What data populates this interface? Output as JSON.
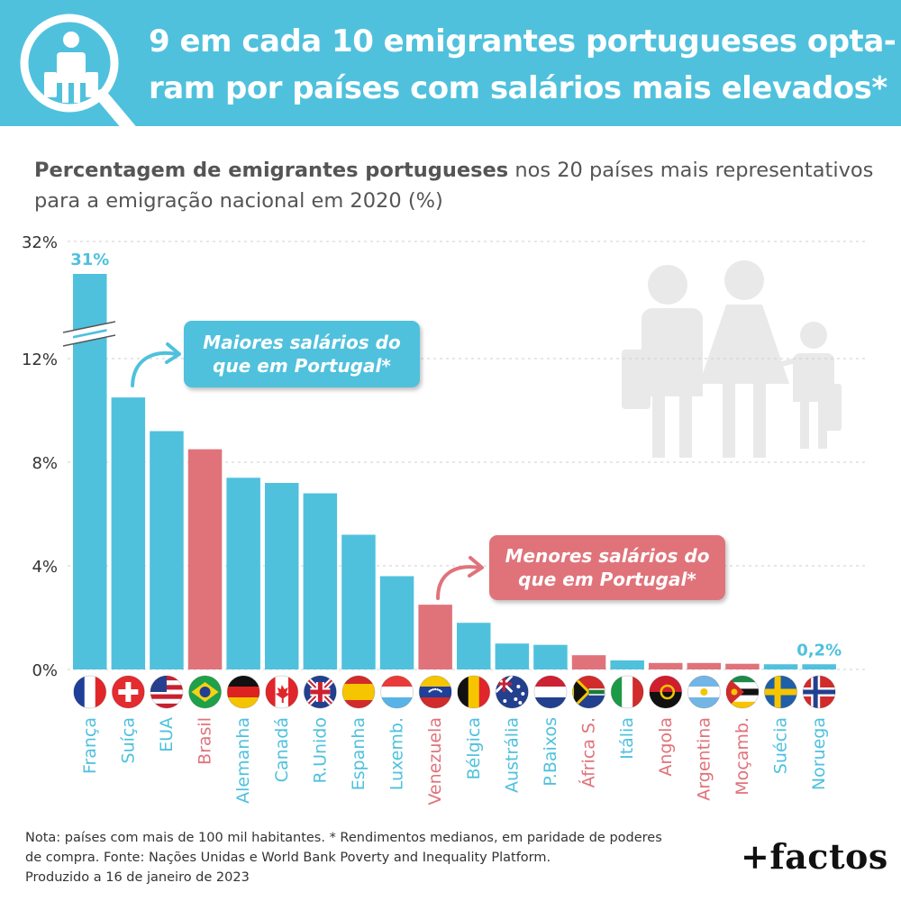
{
  "header": {
    "title_line1": "9 em cada 10 emigrantes portugueses opta-",
    "title_line2": "ram por países com salários mais elevados*",
    "icon": "magnifier-person-icon"
  },
  "subtitle": {
    "bold": "Percentagem de emigrantes portugueses",
    "rest_line1": " nos 20 países mais representativos",
    "line2": "para a emigração nacional em 2020 (%)"
  },
  "colors": {
    "higher": "#4fc1dd",
    "lower": "#e0737a",
    "header": "#4fc1dd",
    "axis_text": "#333333"
  },
  "callouts": {
    "higher_line1": "Maiores salários do",
    "higher_line2": "que em Portugal*",
    "lower_line1": "Menores salários do",
    "lower_line2": "que em Portugal*"
  },
  "chart_data": {
    "type": "bar",
    "categories": [
      "França",
      "Suíça",
      "EUA",
      "Brasil",
      "Alemanha",
      "Canadá",
      "R.Unido",
      "Espanha",
      "Luxemb.",
      "Venezuela",
      "Bélgica",
      "Austrália",
      "P.Baixos",
      "África S.",
      "Itália",
      "Angola",
      "Argentina",
      "Moçamb.",
      "Suécia",
      "Noruega"
    ],
    "values": [
      31,
      10.5,
      9.2,
      8.5,
      7.4,
      7.2,
      6.8,
      5.2,
      3.6,
      2.5,
      1.8,
      1.0,
      0.95,
      0.55,
      0.35,
      0.25,
      0.25,
      0.22,
      0.2,
      0.2
    ],
    "salary_higher_than_portugal": [
      true,
      true,
      true,
      false,
      true,
      true,
      true,
      true,
      true,
      false,
      true,
      true,
      true,
      false,
      true,
      false,
      false,
      false,
      true,
      true
    ],
    "data_labels": [
      {
        "category": "França",
        "text": "31%"
      },
      {
        "category": "Noruega",
        "text": "0,2%"
      }
    ],
    "y_ticks": [
      {
        "value": 0,
        "label": "0%"
      },
      {
        "value": 4,
        "label": "4%"
      },
      {
        "value": 8,
        "label": "8%"
      },
      {
        "value": 12,
        "label": "12%"
      },
      {
        "value": 32,
        "label": "32%"
      }
    ],
    "ylim": [
      0,
      32
    ],
    "axis_break": [
      13,
      30
    ],
    "grid": true,
    "xlabel": "",
    "ylabel": ""
  },
  "flags": [
    "france-flag-icon",
    "switzerland-flag-icon",
    "usa-flag-icon",
    "brazil-flag-icon",
    "germany-flag-icon",
    "canada-flag-icon",
    "uk-flag-icon",
    "spain-flag-icon",
    "luxembourg-flag-icon",
    "venezuela-flag-icon",
    "belgium-flag-icon",
    "australia-flag-icon",
    "netherlands-flag-icon",
    "south-africa-flag-icon",
    "italy-flag-icon",
    "angola-flag-icon",
    "argentina-flag-icon",
    "mozambique-flag-icon",
    "sweden-flag-icon",
    "norway-flag-icon"
  ],
  "footer": {
    "note_line1": "Nota: países com mais de 100 mil habitantes. * Rendimentos medianos, em paridade de poderes",
    "note_line2": "de compra. Fonte: Nações Unidas e World Bank Poverty and Inequality Platform.",
    "note_line3": "Produzido a 16 de janeiro de 2023",
    "brand": "+factos"
  },
  "decor": {
    "family_icon": "family-with-luggage-icon"
  }
}
